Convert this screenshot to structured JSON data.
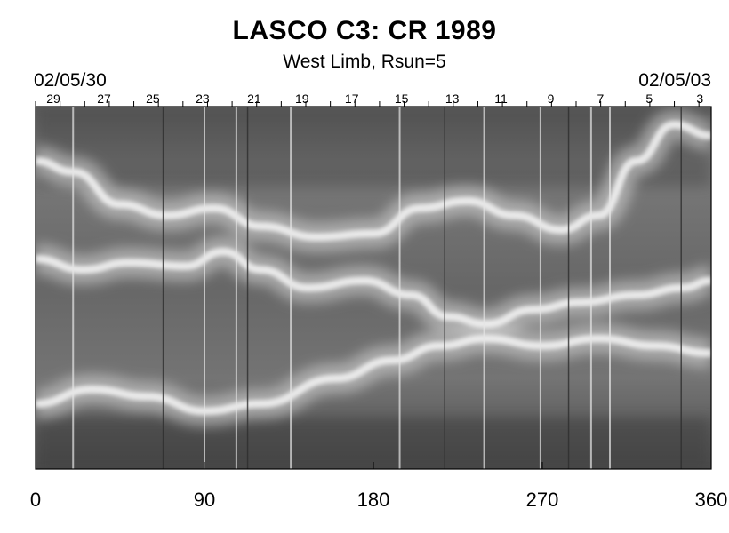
{
  "title": "LASCO C3: CR 1989",
  "subtitle": "West Limb, Rsun=5",
  "date_start": "02/05/30",
  "date_end": "02/05/03",
  "chart_data": {
    "type": "heatmap",
    "title": "LASCO C3: CR 1989",
    "subtitle": "West Limb, Rsun=5",
    "colormap": "grayscale",
    "x_range": [
      0,
      360
    ],
    "x_ticks": [
      0,
      90,
      180,
      270,
      360
    ],
    "x_tick_labels": [
      "0",
      "90",
      "180",
      "270",
      "360"
    ],
    "top_axis": {
      "start_label": "02/05/30",
      "end_label": "02/05/03",
      "day_labels": [
        {
          "label": "29",
          "x": 9.5
        },
        {
          "label": "27",
          "x": 36.5
        },
        {
          "label": "25",
          "x": 62.5
        },
        {
          "label": "23",
          "x": 89
        },
        {
          "label": "21",
          "x": 116.5
        },
        {
          "label": "19",
          "x": 142
        },
        {
          "label": "17",
          "x": 168.5
        },
        {
          "label": "15",
          "x": 195
        },
        {
          "label": "13",
          "x": 222
        },
        {
          "label": "11",
          "x": 248
        },
        {
          "label": "9",
          "x": 274.5
        },
        {
          "label": "7",
          "x": 301
        },
        {
          "label": "5",
          "x": 327
        },
        {
          "label": "3",
          "x": 354
        }
      ]
    },
    "bright_streamer_bands": [
      {
        "points": [
          [
            0,
            15
          ],
          [
            20,
            18
          ],
          [
            45,
            27
          ],
          [
            70,
            30
          ],
          [
            95,
            28
          ],
          [
            120,
            33
          ],
          [
            150,
            36
          ],
          [
            180,
            35
          ],
          [
            205,
            28
          ],
          [
            230,
            26
          ],
          [
            255,
            30
          ],
          [
            280,
            34
          ],
          [
            300,
            30
          ],
          [
            320,
            15
          ],
          [
            340,
            5
          ],
          [
            360,
            8
          ]
        ]
      },
      {
        "points": [
          [
            0,
            42
          ],
          [
            25,
            45
          ],
          [
            50,
            43
          ],
          [
            80,
            44
          ],
          [
            100,
            40
          ],
          [
            120,
            45
          ],
          [
            145,
            50
          ],
          [
            175,
            48
          ],
          [
            200,
            52
          ],
          [
            220,
            58
          ],
          [
            240,
            60
          ],
          [
            265,
            56
          ],
          [
            290,
            54
          ],
          [
            320,
            52
          ],
          [
            345,
            50
          ],
          [
            360,
            48
          ]
        ]
      },
      {
        "points": [
          [
            0,
            82
          ],
          [
            30,
            78
          ],
          [
            60,
            80
          ],
          [
            90,
            84
          ],
          [
            120,
            82
          ],
          [
            160,
            75
          ],
          [
            190,
            70
          ],
          [
            215,
            66
          ],
          [
            240,
            64
          ],
          [
            270,
            66
          ],
          [
            300,
            64
          ],
          [
            330,
            66
          ],
          [
            360,
            68
          ]
        ]
      }
    ],
    "vertical_streaks_deg": [
      20,
      68,
      90,
      107,
      113,
      136,
      194,
      218,
      239,
      269,
      284,
      296,
      306,
      344
    ]
  }
}
